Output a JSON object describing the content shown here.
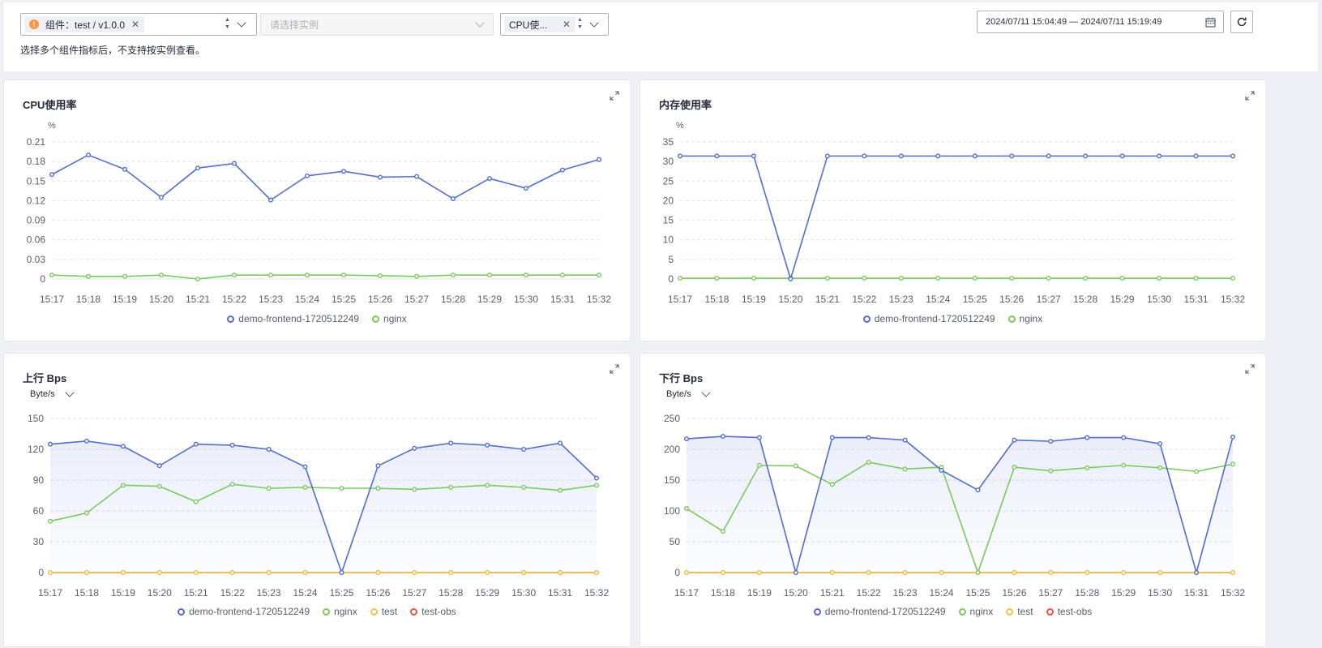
{
  "filters": {
    "component_tag": "组件：test / v1.0.0",
    "instance_placeholder": "请选择实例",
    "metric_tag": "CPU使...",
    "hint": "选择多个组件指标后，不支持按实例查看。",
    "date_range": "2024/07/11 15:04:49 — 2024/07/11 15:19:49"
  },
  "colors": {
    "demo": "#526ecc",
    "nginx": "#7ac95f",
    "test": "#f6c13c",
    "test_obs": "#e8553f"
  },
  "times": [
    "15:17",
    "15:18",
    "15:19",
    "15:20",
    "15:21",
    "15:22",
    "15:23",
    "15:24",
    "15:25",
    "15:26",
    "15:27",
    "15:28",
    "15:29",
    "15:30",
    "15:31",
    "15:32"
  ],
  "panels": [
    {
      "title": "CPU使用率",
      "unit": "%",
      "unit_dropdown": false,
      "chart_data": {
        "type": "line",
        "categories": [
          "15:17",
          "15:18",
          "15:19",
          "15:20",
          "15:21",
          "15:22",
          "15:23",
          "15:24",
          "15:25",
          "15:26",
          "15:27",
          "15:28",
          "15:29",
          "15:30",
          "15:31",
          "15:32"
        ],
        "ylim": [
          0,
          0.21
        ],
        "yticks": [
          "0",
          "0.03",
          "0.06",
          "0.09",
          "0.12",
          "0.15",
          "0.18",
          "0.21"
        ],
        "area": false,
        "series": [
          {
            "name": "demo-frontend-1720512249",
            "key": "demo",
            "values": [
              0.16,
              0.19,
              0.168,
              0.125,
              0.17,
              0.177,
              0.121,
              0.158,
              0.165,
              0.156,
              0.157,
              0.123,
              0.154,
              0.139,
              0.167,
              0.183
            ]
          },
          {
            "name": "nginx",
            "key": "nginx",
            "values": [
              0.006,
              0.004,
              0.004,
              0.006,
              0.0,
              0.006,
              0.006,
              0.006,
              0.006,
              0.005,
              0.004,
              0.006,
              0.006,
              0.006,
              0.006,
              0.006
            ]
          }
        ]
      }
    },
    {
      "title": "内存使用率",
      "unit": "%",
      "unit_dropdown": false,
      "chart_data": {
        "type": "line",
        "categories": [
          "15:17",
          "15:18",
          "15:19",
          "15:20",
          "15:21",
          "15:22",
          "15:23",
          "15:24",
          "15:25",
          "15:26",
          "15:27",
          "15:28",
          "15:29",
          "15:30",
          "15:31",
          "15:32"
        ],
        "ylim": [
          0,
          35
        ],
        "yticks": [
          "0",
          "5",
          "10",
          "15",
          "20",
          "25",
          "30",
          "35"
        ],
        "area": false,
        "series": [
          {
            "name": "demo-frontend-1720512249",
            "key": "demo",
            "values": [
              31.4,
              31.4,
              31.4,
              0,
              31.4,
              31.4,
              31.4,
              31.4,
              31.4,
              31.4,
              31.4,
              31.4,
              31.4,
              31.4,
              31.4,
              31.4
            ]
          },
          {
            "name": "nginx",
            "key": "nginx",
            "values": [
              0.2,
              0.2,
              0.2,
              0.2,
              0.2,
              0.2,
              0.2,
              0.2,
              0.2,
              0.2,
              0.2,
              0.2,
              0.2,
              0.2,
              0.2,
              0.2
            ]
          }
        ]
      }
    },
    {
      "title": "上行 Bps",
      "unit": "Byte/s",
      "unit_dropdown": true,
      "chart_data": {
        "type": "area",
        "categories": [
          "15:17",
          "15:18",
          "15:19",
          "15:20",
          "15:21",
          "15:22",
          "15:23",
          "15:24",
          "15:25",
          "15:26",
          "15:27",
          "15:28",
          "15:29",
          "15:30",
          "15:31",
          "15:32"
        ],
        "ylim": [
          0,
          150
        ],
        "yticks": [
          "0",
          "30",
          "60",
          "90",
          "120",
          "150"
        ],
        "area": true,
        "series": [
          {
            "name": "demo-frontend-1720512249",
            "key": "demo",
            "values": [
              125,
              128,
              123,
              104,
              125,
              124,
              120,
              103,
              0,
              104,
              121,
              126,
              124,
              120,
              126,
              92
            ]
          },
          {
            "name": "nginx",
            "key": "nginx",
            "values": [
              50,
              58,
              85,
              84,
              69,
              86,
              82,
              83,
              82,
              82,
              81,
              83,
              85,
              83,
              80,
              85
            ]
          },
          {
            "name": "test",
            "key": "test",
            "values": [
              0,
              0,
              0,
              0,
              0,
              0,
              0,
              0,
              0,
              0,
              0,
              0,
              0,
              0,
              0,
              0
            ]
          },
          {
            "name": "test-obs",
            "key": "test_obs",
            "values": [
              0,
              0,
              0,
              0,
              0,
              0,
              0,
              0,
              0,
              0,
              0,
              0,
              0,
              0,
              0,
              0
            ]
          }
        ]
      }
    },
    {
      "title": "下行 Bps",
      "unit": "Byte/s",
      "unit_dropdown": true,
      "chart_data": {
        "type": "area",
        "categories": [
          "15:17",
          "15:18",
          "15:19",
          "15:20",
          "15:21",
          "15:22",
          "15:23",
          "15:24",
          "15:25",
          "15:26",
          "15:27",
          "15:28",
          "15:29",
          "15:30",
          "15:31",
          "15:32"
        ],
        "ylim": [
          0,
          250
        ],
        "yticks": [
          "0",
          "50",
          "100",
          "150",
          "200",
          "250"
        ],
        "area": true,
        "series": [
          {
            "name": "demo-frontend-1720512249",
            "key": "demo",
            "values": [
              217,
              221,
              219,
              0,
              219,
              219,
              215,
              166,
              134,
              215,
              213,
              219,
              219,
              209,
              0,
              220
            ]
          },
          {
            "name": "nginx",
            "key": "nginx",
            "values": [
              104,
              67,
              174,
              173,
              143,
              179,
              168,
              171,
              0,
              171,
              165,
              170,
              174,
              170,
              164,
              176
            ]
          },
          {
            "name": "test",
            "key": "test",
            "values": [
              0,
              0,
              0,
              0,
              0,
              0,
              0,
              0,
              0,
              0,
              0,
              0,
              0,
              0,
              0,
              0
            ]
          },
          {
            "name": "test-obs",
            "key": "test_obs",
            "values": [
              0,
              0,
              0,
              0,
              0,
              0,
              0,
              0,
              0,
              0,
              0,
              0,
              0,
              0,
              0,
              0
            ]
          }
        ]
      }
    }
  ]
}
